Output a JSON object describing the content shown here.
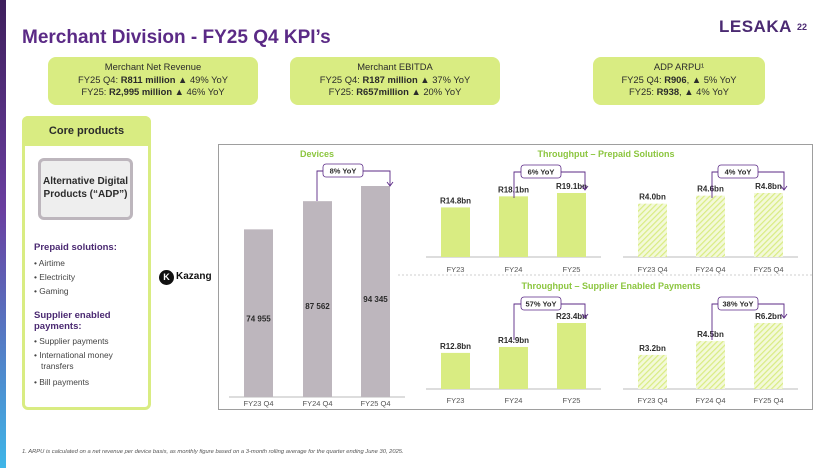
{
  "header": {
    "title": "Merchant Division - FY25 Q4 KPI’s",
    "logo": "LESAKA",
    "page_number": "22"
  },
  "kpis": [
    {
      "title": "Merchant Net Revenue",
      "line1_pre": "FY25 Q4: ",
      "line1_bold": "R811 million",
      "line1_post": " ▲ 49% YoY",
      "line2_pre": "FY25: ",
      "line2_bold": "R2,995 million",
      "line2_post": " ▲ 46% YoY"
    },
    {
      "title": "Merchant EBITDA",
      "line1_pre": "FY25 Q4: ",
      "line1_bold": "R187 million",
      "line1_post": " ▲ 37% YoY",
      "line2_pre": "FY25: ",
      "line2_bold": "R657million",
      "line2_post": " ▲ 20% YoY"
    },
    {
      "title": "ADP ARPU¹",
      "line1_pre": "FY25 Q4: ",
      "line1_bold": "R906",
      "line1_post": ", ▲ 5% YoY",
      "line2_pre": "FY25: ",
      "line2_bold": "R938",
      "line2_post": ", ▲ 4% YoY"
    }
  ],
  "core": {
    "heading": "Core products",
    "adp_label": "Alternative Digital Products (“ADP”)",
    "prepaid_heading": "Prepaid solutions:",
    "prepaid_items": [
      "• Airtime",
      "• Electricity",
      "• Gaming"
    ],
    "supplier_heading_1": "Supplier enabled",
    "supplier_heading_2": "payments:",
    "supplier_items": [
      "• Supplier payments",
      "• International money",
      "transfers",
      "• Bill payments"
    ]
  },
  "kazang": {
    "letter": "K",
    "name": "Kazang"
  },
  "colors": {
    "accent": "#d9ec82",
    "purple": "#5b2a86",
    "green_text": "#8cc63f",
    "devices_bar": "#bdb6bd",
    "bar_green": "#d9ec82"
  },
  "chart_data": [
    {
      "type": "bar",
      "title": "Devices",
      "categories": [
        "FY23 Q4",
        "FY24 Q4",
        "FY25 Q4"
      ],
      "values": [
        74955,
        87562,
        94345
      ],
      "value_labels": [
        "74 955",
        "87 562",
        "94 345"
      ],
      "yoy_label": "8% YoY"
    },
    {
      "type": "bar",
      "title": "Throughput – Prepaid Solutions",
      "categories": [
        "FY23",
        "FY24",
        "FY25"
      ],
      "values": [
        14.8,
        18.1,
        19.1
      ],
      "value_labels": [
        "R14.8bn",
        "R18.1bn",
        "R19.1bn"
      ],
      "yoy_label": "6% YoY"
    },
    {
      "type": "bar",
      "categories": [
        "FY23 Q4",
        "FY24 Q4",
        "FY25 Q4"
      ],
      "values": [
        4.0,
        4.6,
        4.8
      ],
      "value_labels": [
        "R4.0bn",
        "R4.6bn",
        "R4.8bn"
      ],
      "yoy_label": "4% YoY"
    },
    {
      "type": "bar",
      "title": "Throughput – Supplier Enabled Payments",
      "categories": [
        "FY23",
        "FY24",
        "FY25"
      ],
      "values": [
        12.8,
        14.9,
        23.4
      ],
      "value_labels": [
        "R12.8bn",
        "R14.9bn",
        "R23.4bn"
      ],
      "yoy_label": "57% YoY"
    },
    {
      "type": "bar",
      "categories": [
        "FY23 Q4",
        "FY24 Q4",
        "FY25 Q4"
      ],
      "values": [
        3.2,
        4.5,
        6.2
      ],
      "value_labels": [
        "R3.2bn",
        "R4.5bn",
        "R6.2bn"
      ],
      "yoy_label": "38% YoY"
    }
  ],
  "footnote": "1. ARPU is calculated on a net revenue per device basis, as monthly figure based on a 3-month rolling average for the quarter ending June 30, 2025."
}
